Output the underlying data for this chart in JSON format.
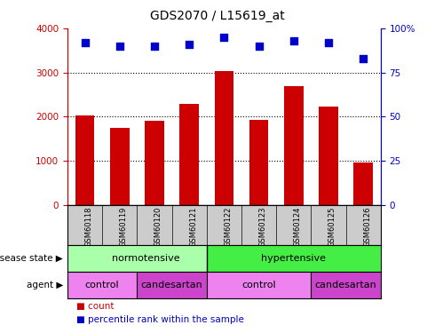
{
  "title": "GDS2070 / L15619_at",
  "samples": [
    "GSM60118",
    "GSM60119",
    "GSM60120",
    "GSM60121",
    "GSM60122",
    "GSM60123",
    "GSM60124",
    "GSM60125",
    "GSM60126"
  ],
  "counts": [
    2020,
    1750,
    1900,
    2280,
    3030,
    1920,
    2680,
    2220,
    960
  ],
  "percentiles": [
    92,
    90,
    90,
    91,
    95,
    90,
    93,
    92,
    83
  ],
  "bar_color": "#cc0000",
  "dot_color": "#0000cc",
  "ylim_left": [
    0,
    4000
  ],
  "ylim_right": [
    0,
    100
  ],
  "yticks_left": [
    0,
    1000,
    2000,
    3000,
    4000
  ],
  "ytick_labels_right": [
    "0",
    "25",
    "50",
    "75",
    "100%"
  ],
  "ytick_vals_right": [
    0,
    25,
    50,
    75,
    100
  ],
  "norm_color": "#aaffaa",
  "hyper_color": "#44ee44",
  "control_color": "#ee82ee",
  "candesartan_color": "#cc44cc",
  "legend_count_color": "#cc0000",
  "legend_percentile_color": "#0000cc",
  "background_color": "#ffffff",
  "xlabels_bg": "#cccccc"
}
